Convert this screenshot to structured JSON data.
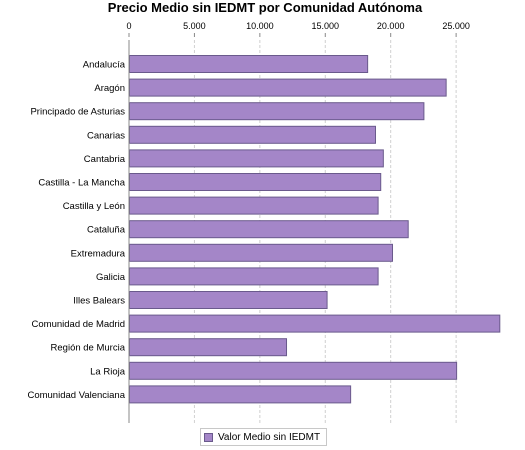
{
  "chart_data": {
    "type": "bar",
    "orientation": "horizontal",
    "title": "Precio Medio sin IEDMT por Comunidad Autónoma",
    "categories": [
      "Andalucía",
      "Aragón",
      "Principado de Asturias",
      "Canarias",
      "Cantabria",
      "Castilla - La Mancha",
      "Castilla y León",
      "Cataluña",
      "Extremadura",
      "Galicia",
      "Illes Balears",
      "Comunidad de Madrid",
      "Región de Murcia",
      "La Rioja",
      "Comunidad Valenciana"
    ],
    "series": [
      {
        "name": "Valor Medio sin IEDMT",
        "values": [
          18200,
          24200,
          22500,
          18800,
          19400,
          19200,
          19000,
          21300,
          20100,
          19000,
          15100,
          28300,
          12000,
          25000,
          16900
        ]
      }
    ],
    "xaxis": {
      "position": "top",
      "ticks": [
        0,
        5000,
        10000,
        15000,
        20000,
        25000
      ],
      "tick_labels": [
        "0",
        "5.000",
        "10.000",
        "15.000",
        "20.000",
        "25.000"
      ],
      "range": [
        0,
        29500
      ]
    },
    "grid": "vertical dashed",
    "legend_position": "bottom",
    "colors": {
      "bar_fill": "#a486c8",
      "bar_stroke": "#6a5a8c",
      "grid": "#d0d0d0",
      "axis": "#888888"
    }
  }
}
